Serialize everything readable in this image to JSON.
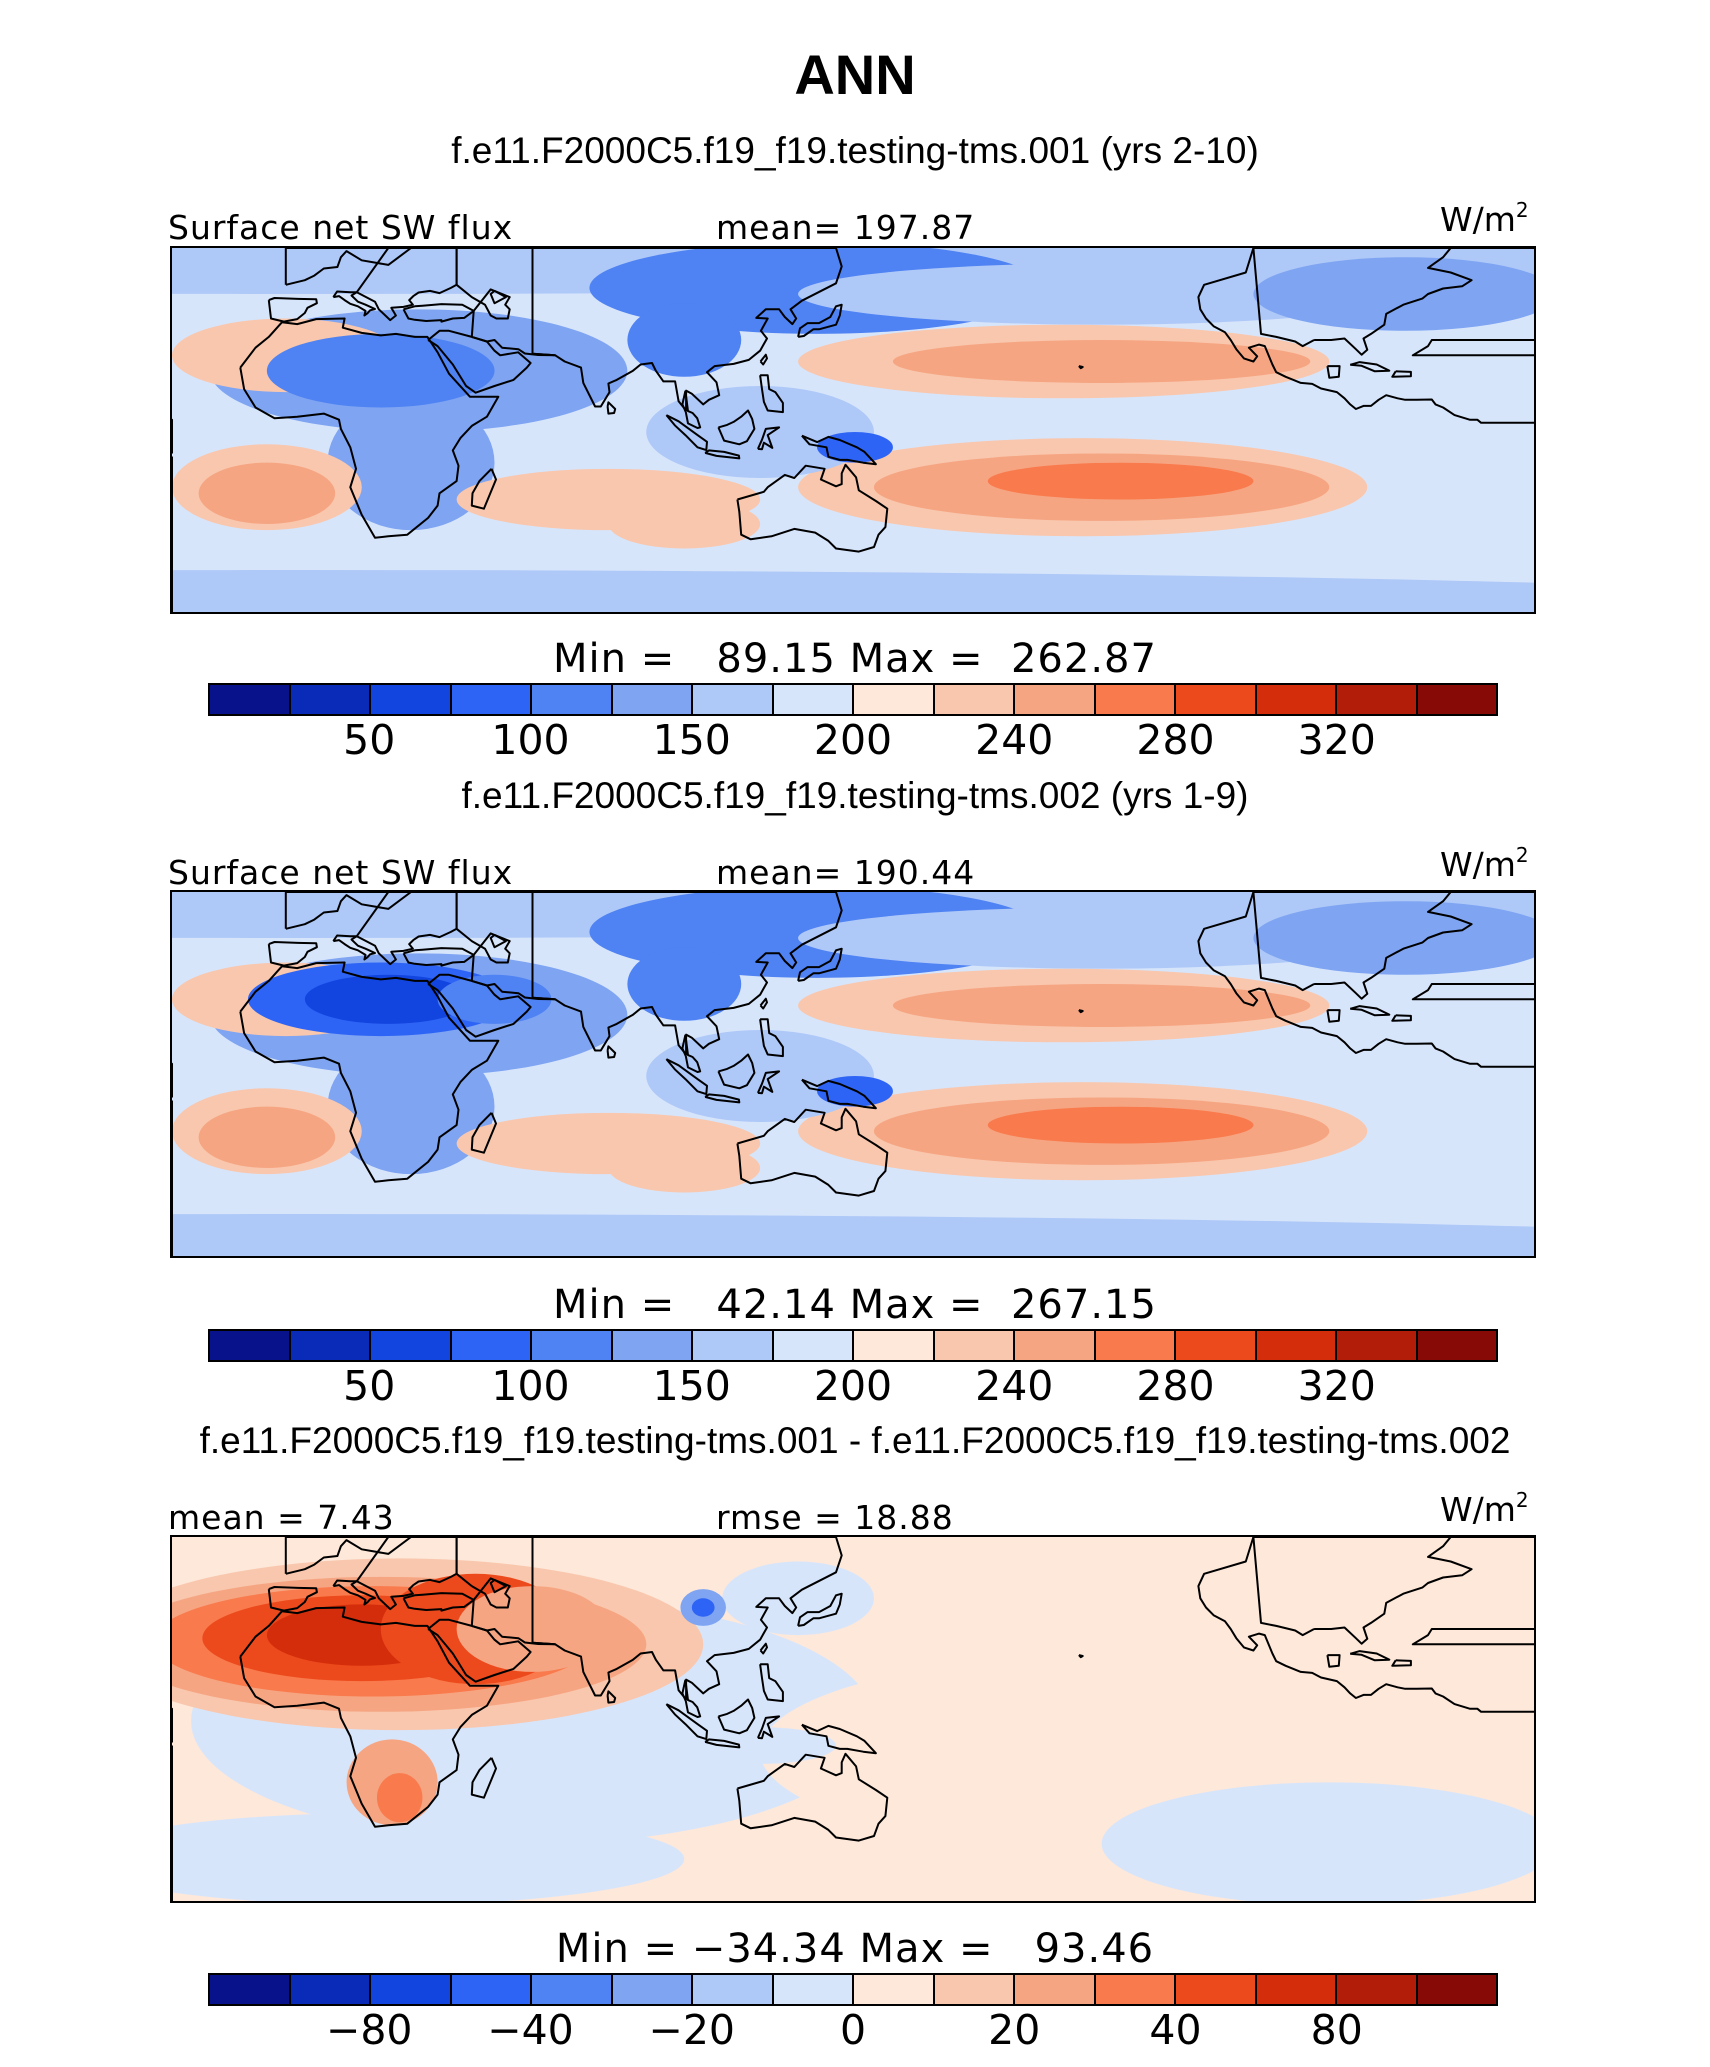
{
  "figure": {
    "title": "ANN"
  },
  "colors": [
    "#08128a",
    "#0a2ab8",
    "#1245e0",
    "#2e64f5",
    "#4f82f2",
    "#7ea4f2",
    "#aec8f8",
    "#d7e5fb",
    "#fde8da",
    "#f9c7ad",
    "#f6a582",
    "#f97a4c",
    "#ec4a1c",
    "#d42d0b",
    "#b11d09",
    "#870a06"
  ],
  "panels": [
    {
      "subtitle": "f.e11.F2000C5.f19_f19.testing-tms.001 (yrs 2-10)",
      "left_label": "Surface net SW flux",
      "mid_label": "mean= 197.87",
      "units": "W/m",
      "units_sup": "2",
      "minmax": "Min =   89.15 Max =  262.87",
      "colorbar_ticks": [
        "50",
        "100",
        "150",
        "200",
        "240",
        "280",
        "320"
      ],
      "variant": "model1"
    },
    {
      "subtitle": "f.e11.F2000C5.f19_f19.testing-tms.002 (yrs 1-9)",
      "left_label": "Surface net SW flux",
      "mid_label": "mean= 190.44",
      "units": "W/m",
      "units_sup": "2",
      "minmax": "Min =   42.14 Max =  267.15",
      "colorbar_ticks": [
        "50",
        "100",
        "150",
        "200",
        "240",
        "280",
        "320"
      ],
      "variant": "model2"
    },
    {
      "subtitle": "f.e11.F2000C5.f19_f19.testing-tms.001 - f.e11.F2000C5.f19_f19.testing-tms.002",
      "left_label": "mean =    7.43",
      "mid_label": "rmse =   18.88",
      "units": "W/m",
      "units_sup": "2",
      "minmax": "Min = −34.34 Max =   93.46",
      "colorbar_ticks": [
        "−80",
        "−40",
        "−20",
        "0",
        "20",
        "40",
        "80"
      ],
      "variant": "diff"
    }
  ]
}
